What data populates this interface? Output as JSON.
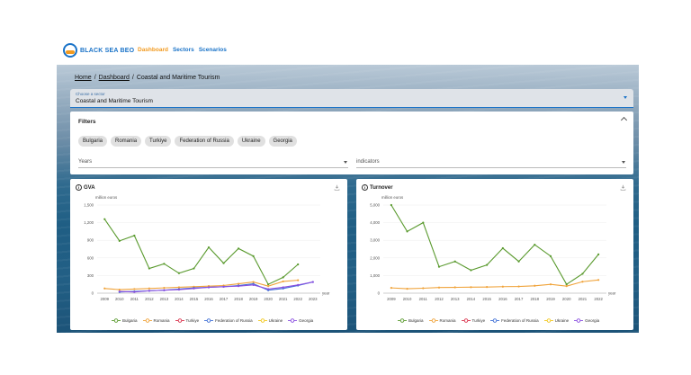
{
  "brand": {
    "name": "BLACK SEA BEO"
  },
  "nav": [
    {
      "label": "Dashboard",
      "active": true
    },
    {
      "label": "Sectors",
      "active": false
    },
    {
      "label": "Scenarios",
      "active": false
    }
  ],
  "breadcrumb": {
    "home": "Home",
    "dashboard": "Dashboard",
    "current": "Coastal and Maritime Tourism"
  },
  "sector": {
    "label": "Choose a sector",
    "value": "Coastal and Maritime Tourism"
  },
  "filters": {
    "title": "Filters",
    "countries": [
      "Bulgaria",
      "Romania",
      "Turkiye",
      "Federation of Russia",
      "Ukraine",
      "Georgia"
    ],
    "years_placeholder": "Years",
    "indicators_placeholder": "indicators"
  },
  "colors": {
    "Bulgaria": "#5a9a2e",
    "Romania": "#f0a33a",
    "Turkiye": "#d9304a",
    "Federation of Russia": "#3f6fd6",
    "Ukraine": "#f2c81e",
    "Georgia": "#8a4fe0"
  },
  "charts": [
    {
      "title": "GVA",
      "unit": "million euros",
      "x_unit": "year",
      "chart_data": {
        "type": "line",
        "x": [
          "2009",
          "2010",
          "2011",
          "2012",
          "2013",
          "2014",
          "2015",
          "2016",
          "2017",
          "2018",
          "2019",
          "2020",
          "2021",
          "2022",
          "2023"
        ],
        "ylim": [
          0,
          1500
        ],
        "yticks": [
          0,
          300,
          600,
          900,
          1200,
          1500
        ],
        "yticklabels": [
          "0",
          "300",
          "600",
          "900",
          "1,200",
          "1,500"
        ],
        "series": [
          {
            "name": "Bulgaria",
            "values": [
              1260,
              890,
              980,
              420,
              500,
              340,
              420,
              780,
              510,
              760,
              630,
              150,
              270,
              490,
              null
            ]
          },
          {
            "name": "Romania",
            "values": [
              80,
              60,
              70,
              80,
              90,
              100,
              110,
              120,
              130,
              160,
              190,
              120,
              200,
              220,
              null
            ]
          },
          {
            "name": "Turkiye",
            "values": [
              null,
              null,
              null,
              null,
              null,
              null,
              null,
              null,
              null,
              null,
              null,
              null,
              null,
              null,
              null
            ]
          },
          {
            "name": "Federation of Russia",
            "values": [
              null,
              20,
              30,
              40,
              50,
              70,
              90,
              100,
              110,
              130,
              160,
              50,
              80,
              130,
              190
            ]
          },
          {
            "name": "Ukraine",
            "values": [
              null,
              null,
              null,
              null,
              null,
              null,
              null,
              null,
              null,
              null,
              null,
              null,
              null,
              null,
              null
            ]
          },
          {
            "name": "Georgia",
            "values": [
              null,
              30,
              20,
              40,
              50,
              60,
              80,
              100,
              110,
              120,
              140,
              70,
              100,
              140,
              190
            ]
          }
        ]
      }
    },
    {
      "title": "Turnover",
      "unit": "million euros",
      "x_unit": "year",
      "chart_data": {
        "type": "line",
        "x": [
          "2009",
          "2010",
          "2011",
          "2012",
          "2013",
          "2014",
          "2015",
          "2016",
          "2017",
          "2018",
          "2019",
          "2020",
          "2021",
          "2022"
        ],
        "ylim": [
          0,
          5000
        ],
        "yticks": [
          0,
          1000,
          2000,
          3000,
          4000,
          5000
        ],
        "yticklabels": [
          "0",
          "1,000",
          "2,000",
          "3,000",
          "4,000",
          "5,000"
        ],
        "series": [
          {
            "name": "Bulgaria",
            "values": [
              5000,
              3500,
              4000,
              1500,
              1800,
              1300,
              1600,
              2550,
              1800,
              2750,
              2100,
              500,
              1100,
              2200
            ]
          },
          {
            "name": "Romania",
            "values": [
              300,
              250,
              280,
              320,
              330,
              340,
              350,
              370,
              380,
              420,
              500,
              400,
              650,
              750
            ]
          },
          {
            "name": "Turkiye",
            "values": [
              null,
              null,
              null,
              null,
              null,
              null,
              null,
              null,
              null,
              null,
              null,
              null,
              null,
              null
            ]
          },
          {
            "name": "Federation of Russia",
            "values": [
              null,
              null,
              null,
              null,
              null,
              null,
              null,
              null,
              null,
              null,
              null,
              null,
              null,
              null
            ]
          },
          {
            "name": "Ukraine",
            "values": [
              null,
              null,
              null,
              null,
              null,
              null,
              null,
              null,
              null,
              null,
              null,
              null,
              null,
              null
            ]
          },
          {
            "name": "Georgia",
            "values": [
              null,
              null,
              null,
              null,
              null,
              null,
              null,
              null,
              null,
              null,
              null,
              null,
              null,
              null
            ]
          }
        ]
      }
    }
  ]
}
